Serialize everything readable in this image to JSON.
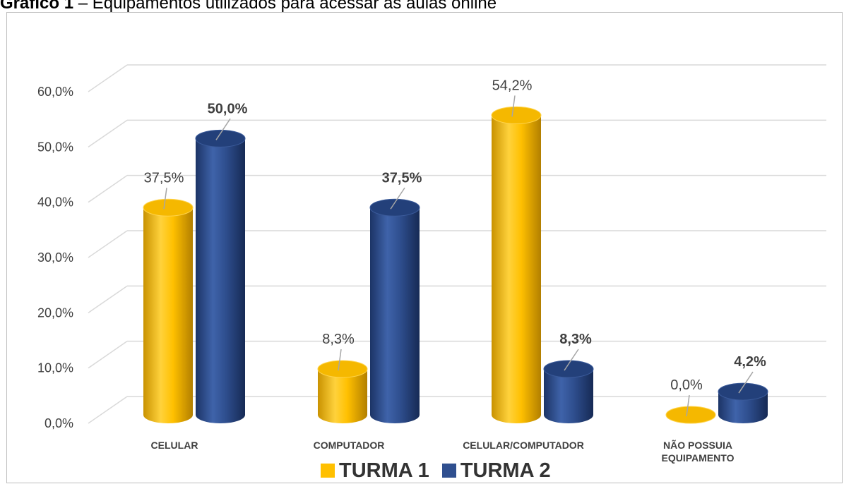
{
  "caption": {
    "label": "Gráfico 1",
    "dash": "–",
    "text": "Equipamentos utilizados para acessar as aulas online"
  },
  "chart_data": {
    "type": "bar",
    "style": "3d-cylinder",
    "categories": [
      [
        "CELULAR"
      ],
      [
        "COMPUTADOR"
      ],
      [
        "CELULAR/COMPUTADOR"
      ],
      [
        "NÃO POSSUIA",
        "EQUIPAMENTO"
      ]
    ],
    "series": [
      {
        "name": "TURMA 1",
        "color": "#FFC000",
        "values": [
          37.5,
          8.3,
          54.2,
          0.0
        ],
        "labels": [
          "37,5%",
          "8,3%",
          "54,2%",
          "0,0%"
        ],
        "label_bold": false
      },
      {
        "name": "TURMA 2",
        "color": "#2F4F8F",
        "values": [
          50.0,
          37.5,
          8.3,
          4.2
        ],
        "labels": [
          "50,0%",
          "37,5%",
          "8,3%",
          "4,2%"
        ],
        "label_bold": true
      }
    ],
    "ylim": [
      0,
      60
    ],
    "yticks": [
      0,
      10,
      20,
      30,
      40,
      50,
      60
    ],
    "ytick_labels": [
      "0,0%",
      "10,0%",
      "20,0%",
      "30,0%",
      "40,0%",
      "50,0%",
      "60,0%"
    ],
    "grid": true,
    "legend_position": "bottom"
  }
}
